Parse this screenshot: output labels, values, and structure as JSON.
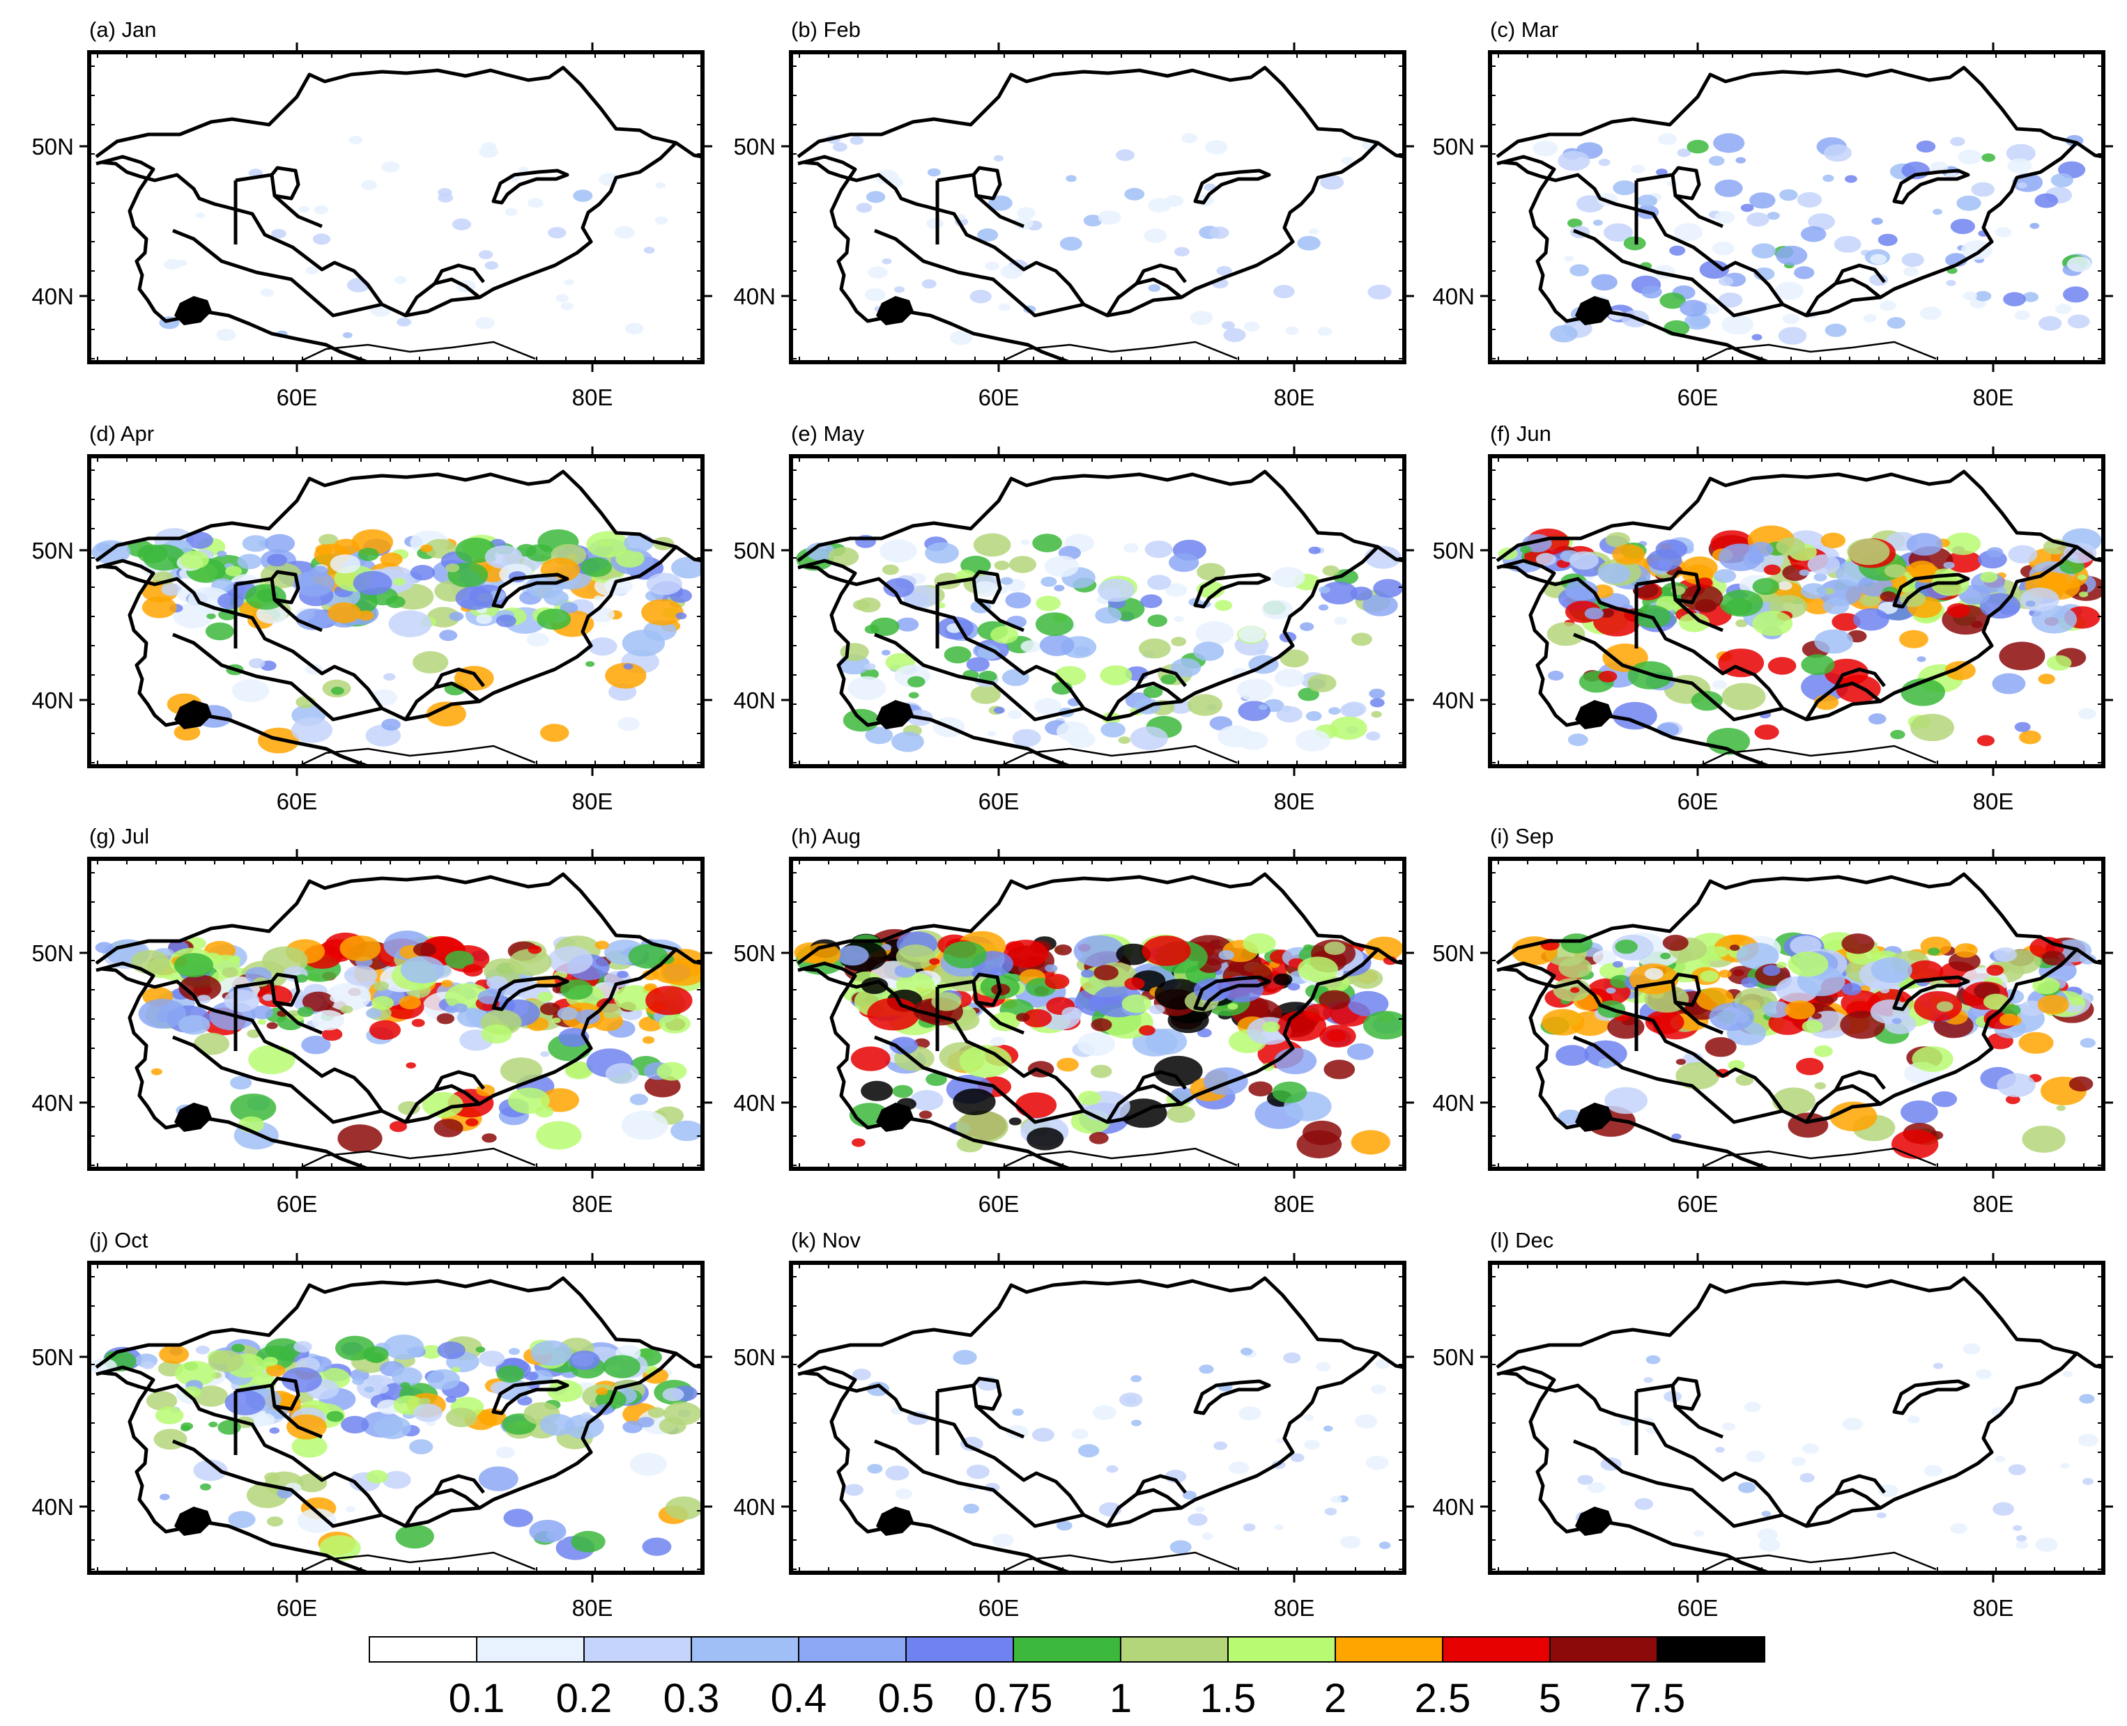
{
  "figure": {
    "panels": [
      {
        "title": "(a) Jan",
        "intensity": 0.05
      },
      {
        "title": "(b) Feb",
        "intensity": 0.1
      },
      {
        "title": "(c) Mar",
        "intensity": 0.35
      },
      {
        "title": "(d) Apr",
        "intensity": 0.7
      },
      {
        "title": "(e) May",
        "intensity": 0.55
      },
      {
        "title": "(f) Jun",
        "intensity": 0.85
      },
      {
        "title": "(g) Jul",
        "intensity": 0.85
      },
      {
        "title": "(h) Aug",
        "intensity": 1.0
      },
      {
        "title": "(i) Sep",
        "intensity": 0.9
      },
      {
        "title": "(j) Oct",
        "intensity": 0.65
      },
      {
        "title": "(k) Nov",
        "intensity": 0.1
      },
      {
        "title": "(l) Dec",
        "intensity": 0.05
      }
    ],
    "lat_ticks": [
      "50N",
      "40N"
    ],
    "lon_ticks": [
      "60E",
      "80E"
    ],
    "colorbar": {
      "labels": [
        "0.1",
        "0.2",
        "0.3",
        "0.4",
        "0.5",
        "0.75",
        "1",
        "1.5",
        "2",
        "2.5",
        "5",
        "7.5"
      ],
      "colors": [
        "#ffffff",
        "#e8f2fe",
        "#c4d4fa",
        "#a0bff6",
        "#8ca8f5",
        "#6f82f0",
        "#3cb93c",
        "#b4d67a",
        "#b8fa72",
        "#ffa500",
        "#e60000",
        "#8c0a0a",
        "#000000"
      ]
    }
  }
}
